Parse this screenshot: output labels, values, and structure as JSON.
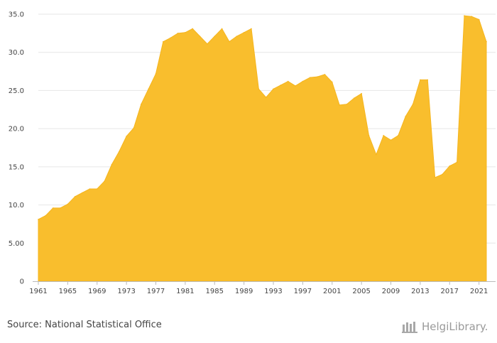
{
  "footer": {
    "source": "Source: National Statistical Office",
    "brand": "HelgiLibrary."
  },
  "chart_data": {
    "type": "area",
    "title": "",
    "xlabel": "",
    "ylabel": "",
    "ylim": [
      0,
      35
    ],
    "grid": true,
    "fill_color": "#F9BE2D",
    "y_ticks": [
      "0",
      "5.00",
      "10.0",
      "15.0",
      "20.0",
      "25.0",
      "30.0",
      "35.0"
    ],
    "y_tick_values": [
      0,
      5,
      10,
      15,
      20,
      25,
      30,
      35
    ],
    "x_ticks": [
      "1961",
      "1965",
      "1969",
      "1973",
      "1977",
      "1981",
      "1985",
      "1989",
      "1993",
      "1997",
      "2001",
      "2005",
      "2009",
      "2013",
      "2017",
      "2021"
    ],
    "x": [
      1961,
      1962,
      1963,
      1964,
      1965,
      1966,
      1967,
      1968,
      1969,
      1970,
      1971,
      1972,
      1973,
      1974,
      1975,
      1976,
      1977,
      1978,
      1979,
      1980,
      1981,
      1982,
      1983,
      1984,
      1985,
      1986,
      1987,
      1988,
      1989,
      1990,
      1991,
      1992,
      1993,
      1994,
      1995,
      1996,
      1997,
      1998,
      1999,
      2000,
      2001,
      2002,
      2003,
      2004,
      2005,
      2006,
      2007,
      2008,
      2009,
      2010,
      2011,
      2012,
      2013,
      2014,
      2015,
      2016,
      2017,
      2018,
      2019,
      2020,
      2021,
      2022
    ],
    "series": [
      {
        "values": [
          8.1,
          8.6,
          9.6,
          9.6,
          10.1,
          11.1,
          11.6,
          12.1,
          12.1,
          13.1,
          15.3,
          17.0,
          19.0,
          20.1,
          23.2,
          25.2,
          27.2,
          31.4,
          31.9,
          32.5,
          32.6,
          33.1,
          32.1,
          31.1,
          32.1,
          33.1,
          31.4,
          32.1,
          32.6,
          33.1,
          25.2,
          24.1,
          25.2,
          25.7,
          26.2,
          25.6,
          26.2,
          26.7,
          26.8,
          27.1,
          26.1,
          23.1,
          23.2,
          24.0,
          24.6,
          19.1,
          16.6,
          19.1,
          18.5,
          19.1,
          21.6,
          23.2,
          26.4,
          26.4,
          13.6,
          14.0,
          15.1,
          15.6,
          34.8,
          34.7,
          34.3,
          31.4
        ]
      }
    ]
  }
}
